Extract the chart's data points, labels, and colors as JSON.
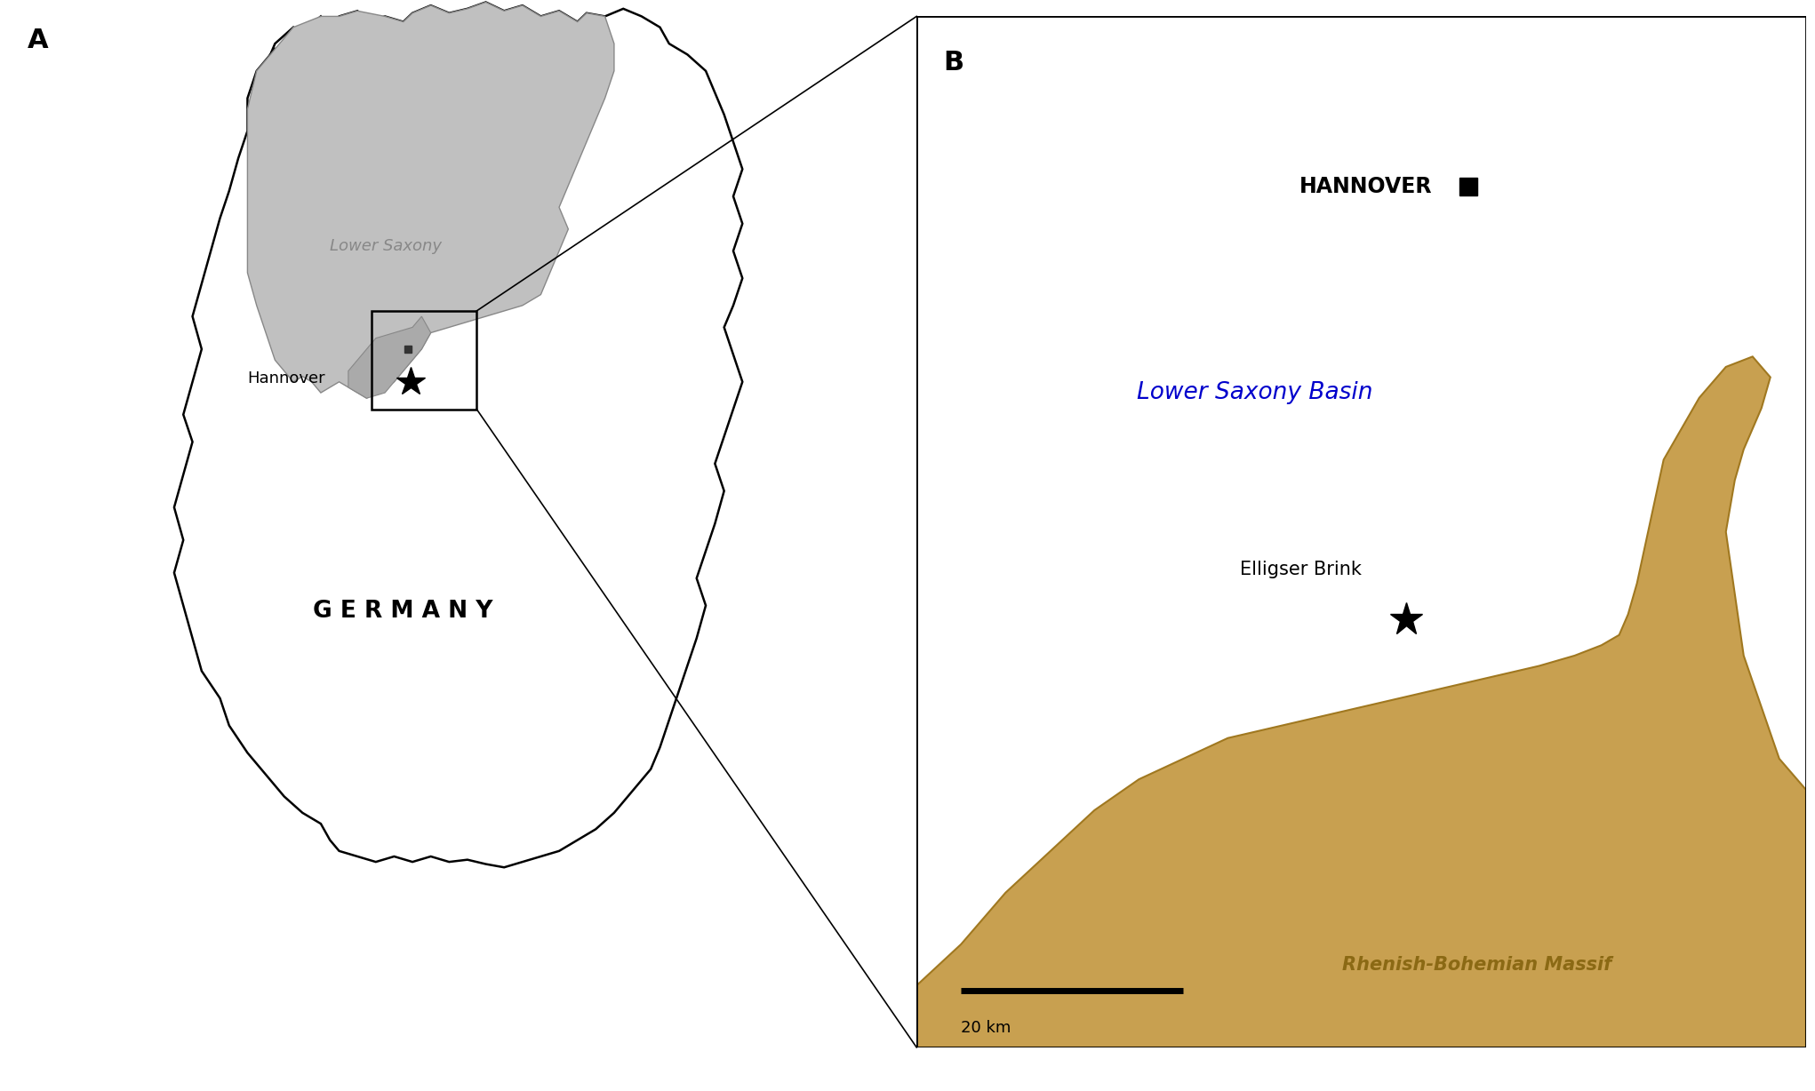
{
  "fig_width": 20.42,
  "fig_height": 12.28,
  "background_color": "#ffffff",
  "panel_a_label": "A",
  "panel_b_label": "B",
  "germany_label": "G E R M A N Y",
  "lower_saxony_label": "Lower Saxony",
  "hannover_label_a": "Hannover",
  "hannover_label_b": "HANNOVER",
  "lower_saxony_basin_label": "Lower Saxony Basin",
  "elligser_brink_label": "Elligser Brink",
  "rhenish_label": "Rhenish-Bohemian Massif",
  "scale_label": "20 km",
  "sea_color": "#bde3f5",
  "land_color": "#c8a050",
  "land_edge_color": "#a07820",
  "lower_saxony_color": "#c0c0c0",
  "lower_saxony_edge": "#888888",
  "germany_face_color": "#ffffff",
  "germany_edge_color": "#000000",
  "basin_label_color": "#0000cc",
  "rhenish_label_color": "#8b6914",
  "germany_label_color": "#000000",
  "lower_saxony_label_color": "#888888"
}
